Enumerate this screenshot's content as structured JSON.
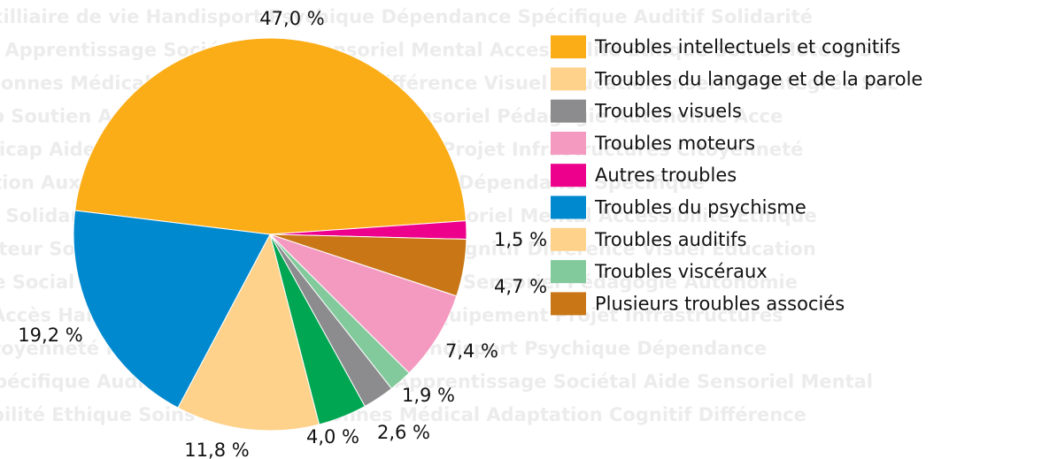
{
  "chart_data": {
    "type": "pie",
    "categories": [
      "Troubles intellectuels et cognitifs",
      "Troubles du langage et de la parole",
      "Troubles visuels",
      "Troubles moteurs",
      "Autres troubles",
      "Troubles du psychisme",
      "Troubles auditifs",
      "Troubles viscéraux",
      "Plusieurs troubles associés"
    ],
    "values": [
      47.0,
      11.8,
      2.6,
      7.4,
      1.5,
      19.2,
      4.0,
      1.9,
      4.7
    ],
    "value_labels": [
      "47,0 %",
      "11,8 %",
      "2,6 %",
      "7,4 %",
      "1,5 %",
      "19,2 %",
      "4,0 %",
      "1,9 %",
      "4,7 %"
    ],
    "colors": [
      "#fbad18",
      "#fed28b",
      "#8c8c8e",
      "#f49ac1",
      "#ec008c",
      "#0089cf",
      "#00a651",
      "#82ca9c",
      "#c87616"
    ],
    "legend_colors": [
      "#fbad18",
      "#fed28b",
      "#8c8c8e",
      "#f49ac1",
      "#ec008c",
      "#0089cf",
      "#fed28b",
      "#82ca9c",
      "#c87616"
    ],
    "order": [
      0,
      4,
      8,
      3,
      7,
      2,
      6,
      1,
      5
    ],
    "background_words": [
      "xilliaire de vie  Handisport  Psychique Dépendance Spécifique Auditif Solidarité",
      "e Apprentissage Sociétal Aide Sensoriel Mental Accessibilité Ethique Soins Moteur Ser",
      "rsonnes Médical Adaptation Cognitif Différence Visuel Education Insertion Intégrée Soc",
      "p Soutien Accompagnement Inclusion Sensoriel Pédagogie Autonomie Acce",
      "dicap Aide Respect Evaluation Equipement Projet Infrastructures Citoyenneté",
      "ation Auxilliaire de vie Handisport Psychique Dépendance Spécifique",
      "f Solidarité Apprentissage Sociétal Aide Sensoriel Mental Accessibilité Ethique",
      "oteur Soins Personnes Médical Adaptation Cognitif Différence Visuel Education",
      "ee Social Soutien Accompagnement Inclusion Sensoriel Pédagogie Autonomie",
      "Accès Handicap Aide Respect Evaluation Equipement Projet Infrastructures",
      "itoyenneté Formation Auxilliaire de vie  Handisport  Psychique Dépendance",
      "Spécifique Auditif Solidarité Psychique Apprentissage Sociétal Aide Sensoriel Mental",
      "bilité Ethique Soins Moteur Personnes Médical Adaptation Cognitif Différence"
    ]
  }
}
